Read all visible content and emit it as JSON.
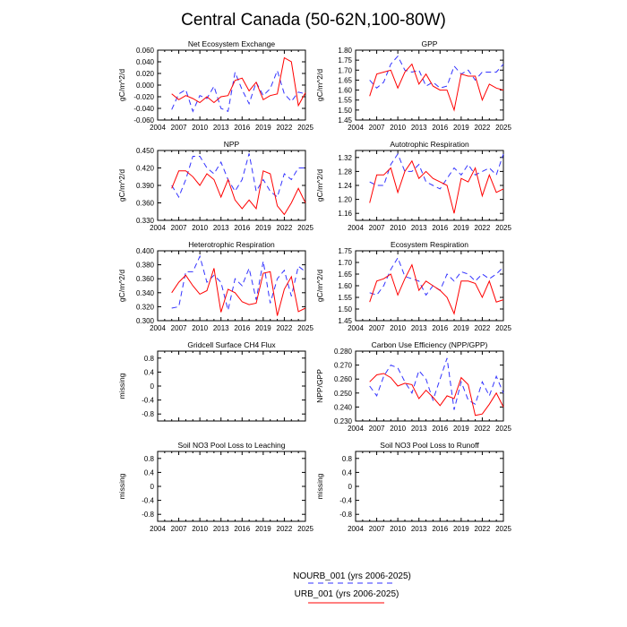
{
  "figure": {
    "title": "Central Canada (50-62N,100-80W)"
  },
  "legend": {
    "entries": [
      {
        "name": "NOURB_001 (yrs 2006-2025)",
        "color": "#3333ff",
        "style": "dashed"
      },
      {
        "name": "URB_001 (yrs 2006-2025)",
        "color": "#ff0000",
        "style": "solid"
      }
    ]
  },
  "chart_data": [
    {
      "type": "line",
      "title": "Net Ecosystem Exchange",
      "ylabel": "gC/m^2/d",
      "xlim": [
        2004,
        2025
      ],
      "ylim": [
        -0.06,
        0.06
      ],
      "xticks": [
        "2004",
        "2007",
        "2010",
        "2013",
        "2016",
        "2019",
        "2022",
        "2025"
      ],
      "yticks": [
        "-0.060",
        "-0.040",
        "-0.020",
        "0.000",
        "0.020",
        "0.040",
        "0.060"
      ],
      "x": [
        2006,
        2007,
        2008,
        2009,
        2010,
        2011,
        2012,
        2013,
        2014,
        2015,
        2016,
        2017,
        2018,
        2019,
        2020,
        2021,
        2022,
        2023,
        2024,
        2025
      ],
      "series": [
        {
          "name": "NOURB_001 (yrs 2006-2025)",
          "values": [
            -0.042,
            -0.015,
            -0.008,
            -0.045,
            -0.018,
            -0.023,
            -0.002,
            -0.04,
            -0.045,
            0.022,
            -0.008,
            -0.032,
            0.005,
            -0.018,
            -0.006,
            0.025,
            -0.015,
            -0.028,
            -0.012,
            -0.015
          ]
        },
        {
          "name": "URB_001 (yrs 2006-2025)",
          "values": [
            -0.015,
            -0.025,
            -0.018,
            -0.023,
            -0.03,
            -0.02,
            -0.03,
            -0.02,
            -0.018,
            0.008,
            0.012,
            -0.01,
            0.005,
            -0.025,
            -0.018,
            -0.015,
            0.047,
            0.04,
            -0.035,
            -0.013
          ]
        }
      ]
    },
    {
      "type": "line",
      "title": "GPP",
      "ylabel": "gC/m^2/d",
      "xlim": [
        2004,
        2025
      ],
      "ylim": [
        1.45,
        1.8
      ],
      "xticks": [
        "2004",
        "2007",
        "2010",
        "2013",
        "2016",
        "2019",
        "2022",
        "2025"
      ],
      "yticks": [
        "1.45",
        "1.50",
        "1.55",
        "1.60",
        "1.65",
        "1.70",
        "1.75",
        "1.80"
      ],
      "x": [
        2006,
        2007,
        2008,
        2009,
        2010,
        2011,
        2012,
        2013,
        2014,
        2015,
        2016,
        2017,
        2018,
        2019,
        2020,
        2021,
        2022,
        2023,
        2024,
        2025
      ],
      "series": [
        {
          "name": "NOURB_001 (yrs 2006-2025)",
          "values": [
            1.65,
            1.61,
            1.64,
            1.73,
            1.77,
            1.7,
            1.69,
            1.7,
            1.62,
            1.64,
            1.61,
            1.62,
            1.72,
            1.68,
            1.7,
            1.65,
            1.69,
            1.69,
            1.69,
            1.73
          ]
        },
        {
          "name": "URB_001 (yrs 2006-2025)",
          "values": [
            1.57,
            1.68,
            1.69,
            1.7,
            1.61,
            1.69,
            1.73,
            1.63,
            1.68,
            1.62,
            1.6,
            1.6,
            1.5,
            1.68,
            1.67,
            1.67,
            1.55,
            1.63,
            1.61,
            1.6
          ]
        }
      ]
    },
    {
      "type": "line",
      "title": "NPP",
      "ylabel": "gC/m^2/d",
      "xlim": [
        2004,
        2025
      ],
      "ylim": [
        0.33,
        0.45
      ],
      "xticks": [
        "2004",
        "2007",
        "2010",
        "2013",
        "2016",
        "2019",
        "2022",
        "2025"
      ],
      "yticks": [
        "0.330",
        "0.360",
        "0.390",
        "0.420",
        "0.450"
      ],
      "x": [
        2006,
        2007,
        2008,
        2009,
        2010,
        2011,
        2012,
        2013,
        2014,
        2015,
        2016,
        2017,
        2018,
        2019,
        2020,
        2021,
        2022,
        2023,
        2024,
        2025
      ],
      "series": [
        {
          "name": "NOURB_001 (yrs 2006-2025)",
          "values": [
            0.39,
            0.37,
            0.4,
            0.44,
            0.44,
            0.42,
            0.41,
            0.43,
            0.4,
            0.38,
            0.4,
            0.445,
            0.38,
            0.4,
            0.38,
            0.37,
            0.41,
            0.4,
            0.42,
            0.42
          ]
        },
        {
          "name": "URB_001 (yrs 2006-2025)",
          "values": [
            0.385,
            0.415,
            0.415,
            0.405,
            0.39,
            0.41,
            0.4,
            0.37,
            0.4,
            0.365,
            0.35,
            0.365,
            0.35,
            0.415,
            0.41,
            0.355,
            0.34,
            0.36,
            0.385,
            0.36
          ]
        }
      ]
    },
    {
      "type": "line",
      "title": "Autotrophic Respiration",
      "ylabel": "gC/m^2/d",
      "xlim": [
        2004,
        2025
      ],
      "ylim": [
        1.14,
        1.34
      ],
      "xticks": [
        "2004",
        "2007",
        "2010",
        "2013",
        "2016",
        "2019",
        "2022",
        "2025"
      ],
      "yticks": [
        "1.16",
        "1.20",
        "1.24",
        "1.28",
        "1.32"
      ],
      "x": [
        2006,
        2007,
        2008,
        2009,
        2010,
        2011,
        2012,
        2013,
        2014,
        2015,
        2016,
        2017,
        2018,
        2019,
        2020,
        2021,
        2022,
        2023,
        2024,
        2025
      ],
      "series": [
        {
          "name": "NOURB_001 (yrs 2006-2025)",
          "values": [
            1.25,
            1.24,
            1.24,
            1.3,
            1.33,
            1.28,
            1.28,
            1.3,
            1.25,
            1.24,
            1.23,
            1.26,
            1.29,
            1.27,
            1.3,
            1.27,
            1.28,
            1.29,
            1.27,
            1.33
          ]
        },
        {
          "name": "URB_001 (yrs 2006-2025)",
          "values": [
            1.19,
            1.27,
            1.27,
            1.29,
            1.22,
            1.28,
            1.31,
            1.26,
            1.28,
            1.26,
            1.25,
            1.24,
            1.16,
            1.26,
            1.25,
            1.29,
            1.21,
            1.27,
            1.22,
            1.23
          ]
        }
      ]
    },
    {
      "type": "line",
      "title": "Heterotrophic Respiration",
      "ylabel": "gC/m^2/d",
      "xlim": [
        2004,
        2025
      ],
      "ylim": [
        0.3,
        0.4
      ],
      "xticks": [
        "2004",
        "2007",
        "2010",
        "2013",
        "2016",
        "2019",
        "2022",
        "2025"
      ],
      "yticks": [
        "0.300",
        "0.320",
        "0.340",
        "0.360",
        "0.380",
        "0.400"
      ],
      "x": [
        2006,
        2007,
        2008,
        2009,
        2010,
        2011,
        2012,
        2013,
        2014,
        2015,
        2016,
        2017,
        2018,
        2019,
        2020,
        2021,
        2022,
        2023,
        2024,
        2025
      ],
      "series": [
        {
          "name": "NOURB_001 (yrs 2006-2025)",
          "values": [
            0.318,
            0.32,
            0.37,
            0.37,
            0.392,
            0.355,
            0.365,
            0.355,
            0.315,
            0.36,
            0.35,
            0.375,
            0.33,
            0.385,
            0.325,
            0.36,
            0.372,
            0.335,
            0.378,
            0.37
          ]
        },
        {
          "name": "URB_001 (yrs 2006-2025)",
          "values": [
            0.34,
            0.355,
            0.365,
            0.35,
            0.338,
            0.343,
            0.375,
            0.312,
            0.345,
            0.34,
            0.327,
            0.323,
            0.325,
            0.368,
            0.37,
            0.307,
            0.345,
            0.363,
            0.313,
            0.318
          ]
        }
      ]
    },
    {
      "type": "line",
      "title": "Ecosystem Respiration",
      "ylabel": "gC/m^2/d",
      "xlim": [
        2004,
        2025
      ],
      "ylim": [
        1.45,
        1.75
      ],
      "xticks": [
        "2004",
        "2007",
        "2010",
        "2013",
        "2016",
        "2019",
        "2022",
        "2025"
      ],
      "yticks": [
        "1.45",
        "1.50",
        "1.55",
        "1.60",
        "1.65",
        "1.70",
        "1.75"
      ],
      "x": [
        2006,
        2007,
        2008,
        2009,
        2010,
        2011,
        2012,
        2013,
        2014,
        2015,
        2016,
        2017,
        2018,
        2019,
        2020,
        2021,
        2022,
        2023,
        2024,
        2025
      ],
      "series": [
        {
          "name": "NOURB_001 (yrs 2006-2025)",
          "values": [
            1.57,
            1.56,
            1.6,
            1.67,
            1.72,
            1.64,
            1.63,
            1.62,
            1.56,
            1.6,
            1.58,
            1.65,
            1.62,
            1.66,
            1.65,
            1.62,
            1.65,
            1.63,
            1.65,
            1.68
          ]
        },
        {
          "name": "URB_001 (yrs 2006-2025)",
          "values": [
            1.53,
            1.62,
            1.63,
            1.65,
            1.56,
            1.63,
            1.69,
            1.58,
            1.62,
            1.6,
            1.58,
            1.55,
            1.48,
            1.62,
            1.62,
            1.61,
            1.55,
            1.62,
            1.53,
            1.54
          ]
        }
      ]
    },
    {
      "type": "line",
      "title": "Gridcell Surface CH4 Flux",
      "ylabel": "missing",
      "xlim": [
        2004,
        2025
      ],
      "ylim": [
        -1,
        1
      ],
      "xticks": [],
      "yticks": [
        "-0.8",
        "-0.4",
        "0",
        "0.4",
        "0.8"
      ],
      "x": [],
      "series": []
    },
    {
      "type": "line",
      "title": "Carbon Use Efficiency (NPP/GPP)",
      "ylabel": "NPP/GPP",
      "xlim": [
        2004,
        2025
      ],
      "ylim": [
        0.23,
        0.28
      ],
      "xticks": [
        "2004",
        "2007",
        "2010",
        "2013",
        "2016",
        "2019",
        "2022",
        "2025"
      ],
      "yticks": [
        "0.230",
        "0.240",
        "0.250",
        "0.260",
        "0.270",
        "0.280"
      ],
      "x": [
        2006,
        2007,
        2008,
        2009,
        2010,
        2011,
        2012,
        2013,
        2014,
        2015,
        2016,
        2017,
        2018,
        2019,
        2020,
        2021,
        2022,
        2023,
        2024,
        2025
      ],
      "series": [
        {
          "name": "NOURB_001 (yrs 2006-2025)",
          "values": [
            0.255,
            0.248,
            0.262,
            0.27,
            0.268,
            0.258,
            0.25,
            0.266,
            0.26,
            0.245,
            0.26,
            0.275,
            0.238,
            0.258,
            0.245,
            0.242,
            0.258,
            0.248,
            0.262,
            0.25
          ]
        },
        {
          "name": "URB_001 (yrs 2006-2025)",
          "values": [
            0.258,
            0.263,
            0.264,
            0.261,
            0.255,
            0.257,
            0.256,
            0.246,
            0.252,
            0.247,
            0.241,
            0.248,
            0.246,
            0.261,
            0.256,
            0.234,
            0.235,
            0.242,
            0.25,
            0.24
          ]
        }
      ]
    },
    {
      "type": "line",
      "title": "Soil NO3 Pool Loss to Leaching",
      "ylabel": "missing",
      "xlim": [
        2004,
        2025
      ],
      "ylim": [
        -1,
        1
      ],
      "xticks": [
        "2004",
        "2007",
        "2010",
        "2013",
        "2016",
        "2019",
        "2022",
        "2025"
      ],
      "yticks": [
        "-0.8",
        "-0.4",
        "0",
        "0.4",
        "0.8"
      ],
      "x": [],
      "series": []
    },
    {
      "type": "line",
      "title": "Soil NO3 Pool Loss to Runoff",
      "ylabel": "missing",
      "xlim": [
        2004,
        2025
      ],
      "ylim": [
        -1,
        1
      ],
      "xticks": [
        "2004",
        "2007",
        "2010",
        "2013",
        "2016",
        "2019",
        "2022",
        "2025"
      ],
      "yticks": [
        "-0.8",
        "-0.4",
        "0",
        "0.4",
        "0.8"
      ],
      "x": [],
      "series": []
    }
  ]
}
